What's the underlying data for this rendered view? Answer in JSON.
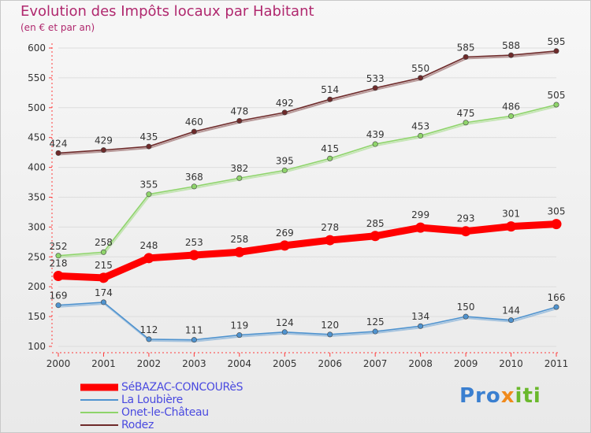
{
  "title": "Evolution des Impôts locaux par Habitant",
  "subtitle": "(en € et par an)",
  "logo": {
    "part1": "Pro",
    "part2": "x",
    "part3": "iti"
  },
  "chart_data": {
    "type": "line",
    "title": "Evolution des Impôts locaux par Habitant",
    "ylabel": "(en € et par an)",
    "xlabel": "",
    "categories": [
      "2000",
      "2001",
      "2002",
      "2003",
      "2004",
      "2005",
      "2006",
      "2007",
      "2008",
      "2009",
      "2010",
      "2011"
    ],
    "ylim": [
      100,
      600
    ],
    "yticks": [
      100,
      150,
      200,
      250,
      300,
      350,
      400,
      450,
      500,
      550,
      600
    ],
    "legend_position": "bottom-left",
    "series": [
      {
        "name": "SéBAZAC-CONCOURèS",
        "color": "#ff0000",
        "values": [
          218,
          215,
          248,
          253,
          258,
          269,
          278,
          285,
          299,
          293,
          301,
          305
        ]
      },
      {
        "name": "La Loubière",
        "color": "#4f93cf",
        "values": [
          169,
          174,
          112,
          111,
          119,
          124,
          120,
          125,
          134,
          150,
          144,
          166
        ]
      },
      {
        "name": "Onet-le-Château",
        "color": "#8ed46a",
        "values": [
          252,
          258,
          355,
          368,
          382,
          395,
          415,
          439,
          453,
          475,
          486,
          505
        ]
      },
      {
        "name": "Rodez",
        "color": "#6e2a2a",
        "values": [
          424,
          429,
          435,
          460,
          478,
          492,
          514,
          533,
          550,
          585,
          588,
          595
        ]
      }
    ]
  }
}
